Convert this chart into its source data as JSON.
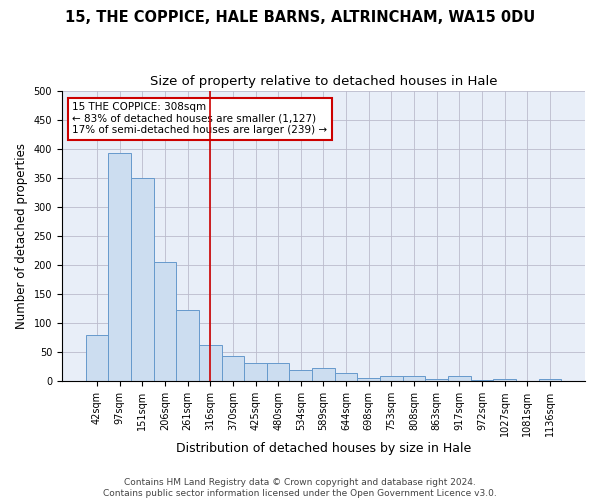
{
  "title": "15, THE COPPICE, HALE BARNS, ALTRINCHAM, WA15 0DU",
  "subtitle": "Size of property relative to detached houses in Hale",
  "xlabel": "Distribution of detached houses by size in Hale",
  "ylabel": "Number of detached properties",
  "footer_line1": "Contains HM Land Registry data © Crown copyright and database right 2024.",
  "footer_line2": "Contains public sector information licensed under the Open Government Licence v3.0.",
  "categories": [
    "42sqm",
    "97sqm",
    "151sqm",
    "206sqm",
    "261sqm",
    "316sqm",
    "370sqm",
    "425sqm",
    "480sqm",
    "534sqm",
    "589sqm",
    "644sqm",
    "698sqm",
    "753sqm",
    "808sqm",
    "863sqm",
    "917sqm",
    "972sqm",
    "1027sqm",
    "1081sqm",
    "1136sqm"
  ],
  "values": [
    80,
    392,
    350,
    205,
    122,
    62,
    43,
    32,
    32,
    20,
    22,
    14,
    6,
    9,
    9,
    4,
    9,
    2,
    3,
    1,
    3
  ],
  "bar_color": "#ccddf0",
  "bar_edge_color": "#6699cc",
  "annotation_text": "15 THE COPPICE: 308sqm\n← 83% of detached houses are smaller (1,127)\n17% of semi-detached houses are larger (239) →",
  "vline_index": 5.0,
  "vline_color": "#cc0000",
  "annotation_box_color": "#ffffff",
  "annotation_box_edge_color": "#cc0000",
  "ylim": [
    0,
    500
  ],
  "yticks": [
    0,
    50,
    100,
    150,
    200,
    250,
    300,
    350,
    400,
    450,
    500
  ],
  "grid_color": "#bbbbcc",
  "plot_bg_color": "#e8eef8",
  "background_color": "#ffffff",
  "title_fontsize": 10.5,
  "subtitle_fontsize": 9.5,
  "xlabel_fontsize": 9,
  "ylabel_fontsize": 8.5,
  "tick_fontsize": 7,
  "annotation_fontsize": 7.5,
  "footer_fontsize": 6.5
}
